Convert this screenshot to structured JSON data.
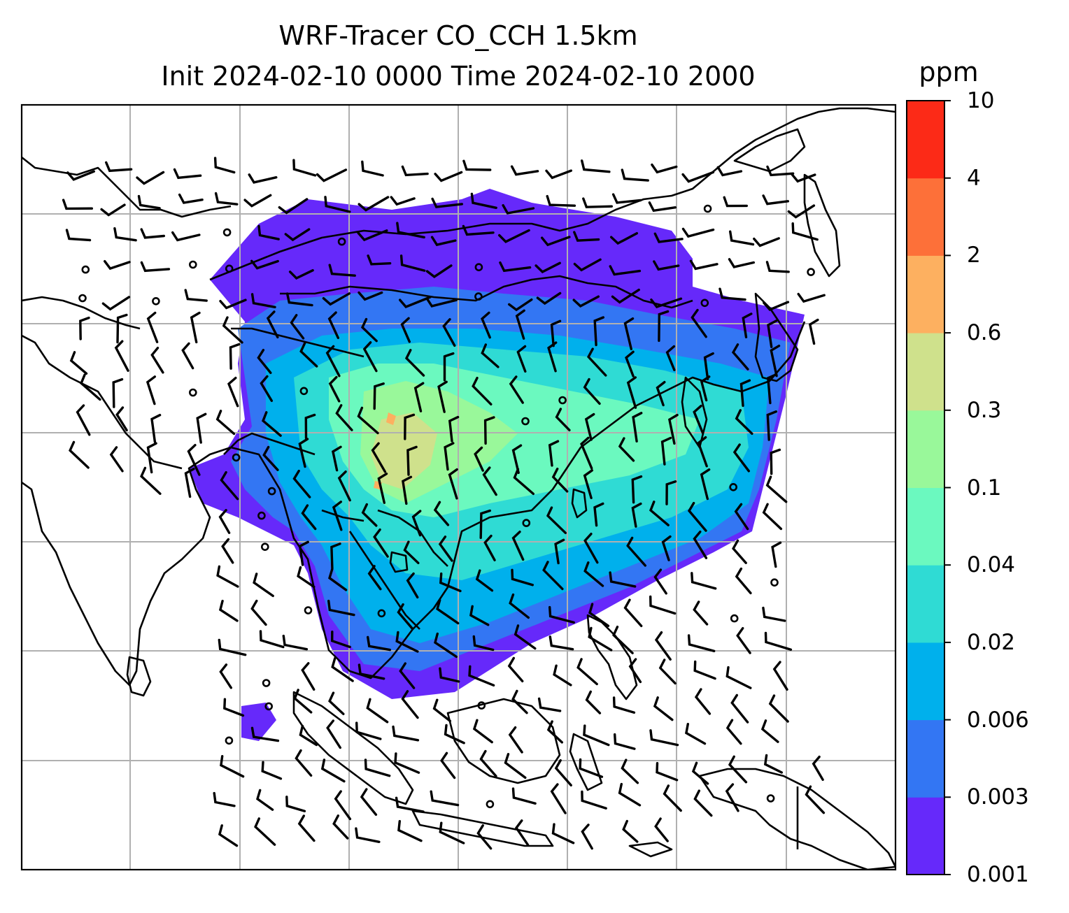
{
  "title": {
    "line1": "WRF-Tracer CO_CCH 1.5km",
    "line2": "Init 2024-02-10 0000 Time 2024-02-10 2000"
  },
  "colorbar": {
    "unit": "ppm",
    "ticks": [
      "0.001",
      "0.003",
      "0.006",
      "0.02",
      "0.04",
      "0.1",
      "0.3",
      "0.6",
      "2",
      "4",
      "10"
    ],
    "colors": [
      "#6629fa",
      "#3376f3",
      "#00b0ec",
      "#2fdbd4",
      "#6bf9bf",
      "#99f89a",
      "#cfe18c",
      "#fdb060",
      "#fd7039",
      "#fc2a17"
    ]
  },
  "map": {
    "gridlines": true,
    "coastline_color": "#000000",
    "grid_color": "#b0b0b0",
    "field_colors": {
      "c1": "#6629fa",
      "c2": "#3376f3",
      "c3": "#00b0ec",
      "c4": "#2fdbd4",
      "c5": "#6bf9bf",
      "c6": "#99f89a",
      "c7": "#cfe18c",
      "c8": "#fdb060"
    }
  }
}
